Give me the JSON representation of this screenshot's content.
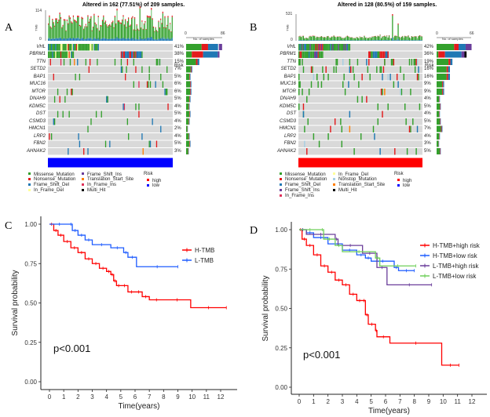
{
  "panels": {
    "A": {
      "letter": "A",
      "title": "Altered in 162 (77.51%) of 209 samples.",
      "tmb_axis": {
        "label": "TMB",
        "max": "114",
        "min": "0"
      },
      "side_axis": {
        "label": "No. of samples",
        "min": "0",
        "max": "86"
      },
      "risk_label": "Risk",
      "risk_color": "#0000ff",
      "genes": [
        {
          "name": "VHL",
          "pct": "41%"
        },
        {
          "name": "PBRM1",
          "pct": "38%"
        },
        {
          "name": "TTN",
          "pct": "15%"
        },
        {
          "name": "SETD2",
          "pct": "7%"
        },
        {
          "name": "BAP1",
          "pct": "5%"
        },
        {
          "name": "MUC16",
          "pct": "6%"
        },
        {
          "name": "MTOR",
          "pct": "6%"
        },
        {
          "name": "DNAH9",
          "pct": "5%"
        },
        {
          "name": "KDM5C",
          "pct": "4%"
        },
        {
          "name": "DST",
          "pct": "5%"
        },
        {
          "name": "CSMD3",
          "pct": "4%"
        },
        {
          "name": "HMCN1",
          "pct": "2%"
        },
        {
          "name": "LRP2",
          "pct": "4%"
        },
        {
          "name": "FBN2",
          "pct": "5%"
        },
        {
          "name": "AHNAK2",
          "pct": "3%"
        }
      ],
      "legend": [
        {
          "label": "Missense_Mutation",
          "color": "#33a02c"
        },
        {
          "label": "Nonsense_Mutation",
          "color": "#e31a1c"
        },
        {
          "label": "Frame_Shift_Del",
          "color": "#1f78b4"
        },
        {
          "label": "In_Frame_Del",
          "color": "#ffff99"
        },
        {
          "label": "Frame_Shift_Ins",
          "color": "#6a3d9a"
        },
        {
          "label": "Translation_Start_Site",
          "color": "#ff7f00"
        },
        {
          "label": "In_Frame_Ins",
          "color": "#e0315a"
        },
        {
          "label": "Multi_Hit",
          "color": "#000000"
        }
      ],
      "risk_legend": {
        "title": "Risk",
        "items": [
          {
            "label": "high",
            "color": "#ff0000"
          },
          {
            "label": "low",
            "color": "#0000ff"
          }
        ]
      }
    },
    "B": {
      "letter": "B",
      "title": "Altered in 128 (80.5%) of 159 samples.",
      "tmb_axis": {
        "label": "TMB",
        "max": "531",
        "min": "0"
      },
      "side_axis": {
        "label": "No. of samples",
        "min": "0",
        "max": "66"
      },
      "risk_label": "Risk",
      "risk_color": "#ff0000",
      "genes": [
        {
          "name": "VHL",
          "pct": "42%"
        },
        {
          "name": "PBRM1",
          "pct": "36%"
        },
        {
          "name": "TTN",
          "pct": "19%"
        },
        {
          "name": "SETD2",
          "pct": "16%"
        },
        {
          "name": "BAP1",
          "pct": "16%"
        },
        {
          "name": "MUC16",
          "pct": "9%"
        },
        {
          "name": "MTOR",
          "pct": "9%"
        },
        {
          "name": "DNAH9",
          "pct": "4%"
        },
        {
          "name": "KDM5C",
          "pct": "5%"
        },
        {
          "name": "DST",
          "pct": "4%"
        },
        {
          "name": "CSMD3",
          "pct": "5%"
        },
        {
          "name": "HMCN1",
          "pct": "7%"
        },
        {
          "name": "LRP2",
          "pct": "4%"
        },
        {
          "name": "FBN2",
          "pct": "3%"
        },
        {
          "name": "AHNAK2",
          "pct": "5%"
        }
      ],
      "legend": [
        {
          "label": "Missense_Mutation",
          "color": "#33a02c"
        },
        {
          "label": "Nonsense_Mutation",
          "color": "#e31a1c"
        },
        {
          "label": "Frame_Shift_Del",
          "color": "#1f78b4"
        },
        {
          "label": "Frame_Shift_Ins",
          "color": "#6a3d9a"
        },
        {
          "label": "In_Frame_Ins",
          "color": "#e0315a"
        },
        {
          "label": "In_Frame_Del",
          "color": "#ffff99"
        },
        {
          "label": "Nonstop_Mutation",
          "color": "#a6cee3"
        },
        {
          "label": "Translation_Start_Site",
          "color": "#ff7f00"
        },
        {
          "label": "Multi_Hit",
          "color": "#000000"
        }
      ],
      "risk_legend": {
        "title": "Risk",
        "items": [
          {
            "label": "high",
            "color": "#ff0000"
          },
          {
            "label": "low",
            "color": "#0000ff"
          }
        ]
      }
    },
    "C": {
      "letter": "C",
      "pval": "p<0.001"
    },
    "D": {
      "letter": "D",
      "pval": "p<0.001"
    }
  },
  "chart_data": [
    {
      "type": "line",
      "panel": "C",
      "title": "",
      "xlabel": "Time(years)",
      "ylabel": "Survival probability",
      "xlim": [
        0,
        12.5
      ],
      "ylim": [
        0,
        1
      ],
      "xticks": [
        "0",
        "1",
        "2",
        "3",
        "4",
        "5",
        "6",
        "7",
        "8",
        "9",
        "10",
        "11",
        "12"
      ],
      "yticks": [
        "0.00",
        "0.25",
        "0.50",
        "0.75",
        "1.00"
      ],
      "legend_position": "top-right",
      "series": [
        {
          "name": "H-TMB",
          "color": "#ff0000",
          "x": [
            0,
            0.3,
            0.6,
            1.0,
            1.5,
            2.0,
            2.5,
            3.0,
            3.5,
            4.0,
            4.3,
            4.5,
            4.7,
            5.0,
            5.5,
            6.0,
            6.5,
            7.0,
            8.0,
            9.9,
            12.4
          ],
          "y": [
            1.0,
            0.96,
            0.93,
            0.89,
            0.85,
            0.82,
            0.78,
            0.75,
            0.72,
            0.7,
            0.68,
            0.64,
            0.61,
            0.61,
            0.57,
            0.57,
            0.54,
            0.52,
            0.52,
            0.47,
            0.47
          ]
        },
        {
          "name": "L-TMB",
          "color": "#1e5cff",
          "x": [
            0,
            1.4,
            1.6,
            2.0,
            2.5,
            3.0,
            4.3,
            5.2,
            5.5,
            6.1,
            9.0
          ],
          "y": [
            1.0,
            1.0,
            0.96,
            0.93,
            0.9,
            0.87,
            0.85,
            0.82,
            0.79,
            0.73,
            0.73
          ]
        }
      ]
    },
    {
      "type": "line",
      "panel": "D",
      "title": "",
      "xlabel": "Time(years)",
      "ylabel": "Survival probability",
      "xlim": [
        0,
        12.5
      ],
      "ylim": [
        0,
        1
      ],
      "xticks": [
        "0",
        "1",
        "2",
        "3",
        "4",
        "5",
        "6",
        "7",
        "8",
        "9",
        "10",
        "11",
        "12"
      ],
      "yticks": [
        "0.00",
        "0.25",
        "0.50",
        "0.75",
        "1.00"
      ],
      "legend_position": "top-right",
      "series": [
        {
          "name": "H-TMB+high risk",
          "color": "#ff0000",
          "x": [
            0,
            0.2,
            0.5,
            1.0,
            1.5,
            2.0,
            2.5,
            3.0,
            3.5,
            4.0,
            4.4,
            4.6,
            4.8,
            5.3,
            5.4,
            6.3,
            9.9,
            11.1
          ],
          "y": [
            1.0,
            0.94,
            0.9,
            0.84,
            0.77,
            0.73,
            0.68,
            0.65,
            0.59,
            0.55,
            0.55,
            0.46,
            0.4,
            0.36,
            0.32,
            0.28,
            0.14,
            0.14
          ]
        },
        {
          "name": "H-TMB+low risk",
          "color": "#1e5cff",
          "x": [
            0,
            0.5,
            1.0,
            2.0,
            3.0,
            4.0,
            4.6,
            5.0,
            6.6,
            6.9,
            8.0
          ],
          "y": [
            1.0,
            0.98,
            0.95,
            0.91,
            0.87,
            0.84,
            0.82,
            0.8,
            0.76,
            0.74,
            0.74
          ]
        },
        {
          "name": "L-TMB+high risk",
          "color": "#6a3d9a",
          "x": [
            0,
            0.5,
            2.5,
            2.7,
            4.4,
            5.4,
            6.1,
            9.2
          ],
          "y": [
            1.0,
            0.97,
            0.94,
            0.9,
            0.85,
            0.76,
            0.65,
            0.65
          ]
        },
        {
          "name": "L-TMB+low risk",
          "color": "#6fcf5a",
          "x": [
            0,
            1.5,
            1.7,
            2.5,
            3.0,
            5.3,
            5.6,
            8.1
          ],
          "y": [
            1.0,
            1.0,
            0.94,
            0.9,
            0.86,
            0.82,
            0.77,
            0.77
          ]
        }
      ]
    }
  ]
}
